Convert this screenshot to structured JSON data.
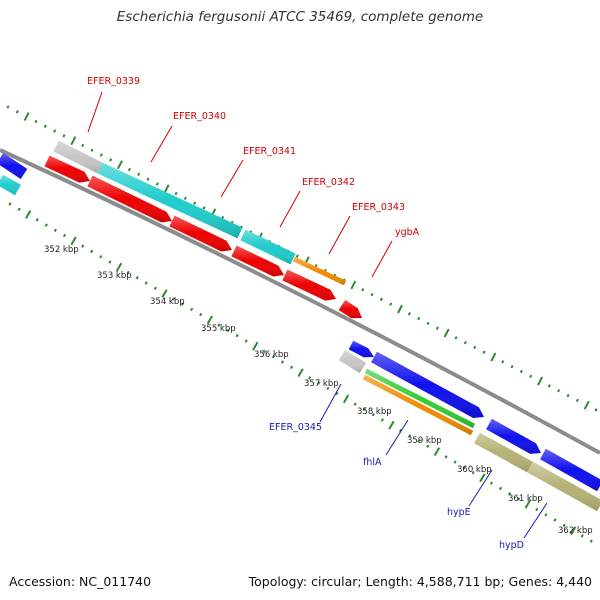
{
  "title": "Escherichia fergusonii ATCC 35469, complete genome",
  "accession_text": "Accession: NC_011740",
  "summary_text": "Topology: circular; Length: 4,588,711 bp; Genes: 4,440",
  "colors": {
    "backbone": "#8c8c8c",
    "ticks": "#2e8a2e",
    "label_red": "#cc0000",
    "label_blue": "#1a1ab3",
    "gray": "#c6c6c6",
    "cyan": "#1fcccc",
    "red": "#ee0000",
    "orange": "#f08c00",
    "blue": "#1010ee",
    "green": "#33cc33",
    "olive": "#b5b274"
  },
  "kbp_labels": [
    "352 kbp",
    "353 kbp",
    "354 kbp",
    "355 kbp",
    "356 kbp",
    "357 kbp",
    "358 kbp",
    "359 kbp",
    "360 kbp",
    "361 kbp",
    "362 kbp"
  ],
  "gene_labels_top": [
    "EFER_0339",
    "EFER_0340",
    "EFER_0341",
    "EFER_0342",
    "EFER_0343",
    "ygbA"
  ],
  "gene_labels_bottom": [
    "EFER_0345",
    "fhlA",
    "hypE",
    "hypD"
  ]
}
